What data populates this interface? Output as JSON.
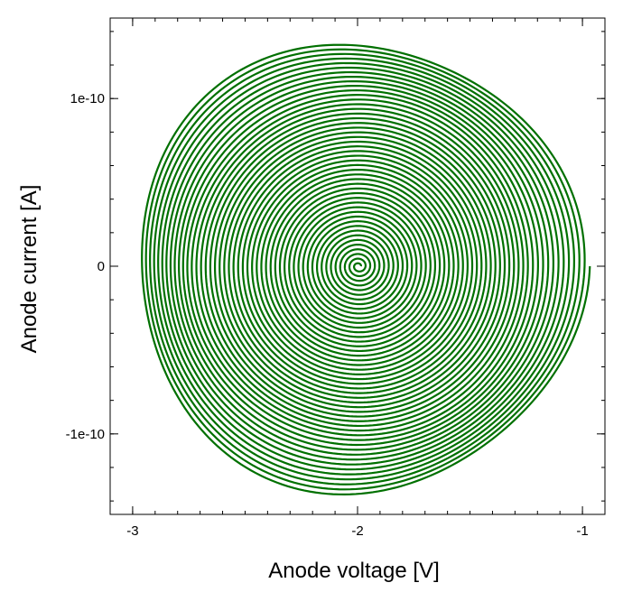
{
  "chart_data": {
    "type": "line",
    "title": "",
    "xlabel": "Anode voltage [V]",
    "ylabel": "Anode current [A]",
    "xlim": [
      -3.1,
      -0.9
    ],
    "ylim": [
      -1.48e-10,
      1.48e-10
    ],
    "x_ticks": [
      {
        "value": -3,
        "label": "-3"
      },
      {
        "value": -2,
        "label": "-2"
      },
      {
        "value": -1,
        "label": "-1"
      }
    ],
    "y_ticks": [
      {
        "value": 1e-10,
        "label": "1e-10"
      },
      {
        "value": 0,
        "label": "0"
      },
      {
        "value": -1e-10,
        "label": "-1e-10"
      }
    ],
    "x_minor_step": 0.1,
    "y_minor_step": 2e-11,
    "grid": false,
    "legend": "none",
    "series": [
      {
        "color": "#007000",
        "kind": "spiral",
        "center": [
          -1.995,
          0
        ],
        "start_radius_x": 0.01,
        "start_radius_y": 1e-12,
        "end_radius_x": 1.0,
        "end_radius_y": 1.35e-10,
        "turns": 48
      }
    ]
  }
}
